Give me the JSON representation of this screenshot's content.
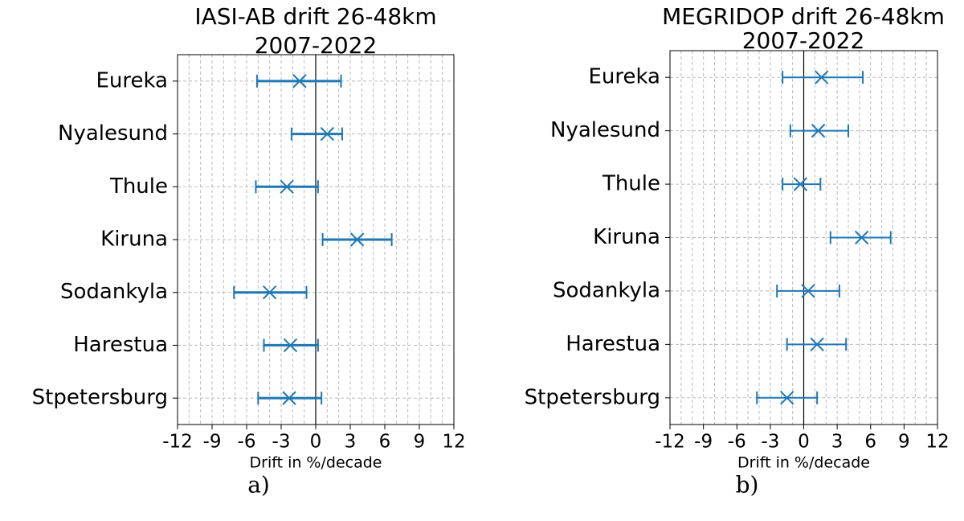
{
  "chart_data": [
    {
      "type": "errorbar",
      "title": "IASI-AB drift 26-48km",
      "subtitle": "2007-2022",
      "x_label": "Drift in %/decade",
      "caption": "a)",
      "categories": [
        "Eureka",
        "Nyalesund",
        "Thule",
        "Kiruna",
        "Sodankyla",
        "Harestua",
        "Stpetersburg"
      ],
      "values": [
        -1.4,
        1.0,
        -2.5,
        3.6,
        -4.0,
        -2.2,
        -2.3
      ],
      "low": [
        -5.1,
        -2.1,
        -5.2,
        0.6,
        -7.1,
        -4.5,
        -5.0
      ],
      "high": [
        2.2,
        2.3,
        0.2,
        6.6,
        -0.8,
        0.2,
        0.5
      ],
      "color": "#1f77b4",
      "line_width": 3,
      "xlim": [
        -12,
        12
      ],
      "xticks": [
        -12,
        -9,
        -6,
        -3,
        0,
        3,
        6,
        9,
        12
      ],
      "grid": true,
      "minor_grid_step": 1,
      "zero_line": true
    },
    {
      "type": "errorbar",
      "title": "MEGRIDOP drift 26-48km",
      "subtitle": "2007-2022",
      "x_label": "Drift in %/decade",
      "caption": "b)",
      "categories": [
        "Eureka",
        "Nyalesund",
        "Thule",
        "Kiruna",
        "Sodankyla",
        "Harestua",
        "Stpetersburg"
      ],
      "values": [
        1.6,
        1.3,
        -0.3,
        5.2,
        0.4,
        1.2,
        -1.5
      ],
      "low": [
        -1.9,
        -1.2,
        -1.9,
        2.4,
        -2.4,
        -1.5,
        -4.2
      ],
      "high": [
        5.3,
        4.0,
        1.5,
        7.8,
        3.2,
        3.8,
        1.2
      ],
      "color": "#1f77b4",
      "line_width": 2,
      "xlim": [
        -12,
        12
      ],
      "xticks": [
        -12,
        -9,
        -6,
        -3,
        0,
        3,
        6,
        9,
        12
      ],
      "grid": true,
      "minor_grid_step": 1,
      "zero_line": true
    }
  ]
}
